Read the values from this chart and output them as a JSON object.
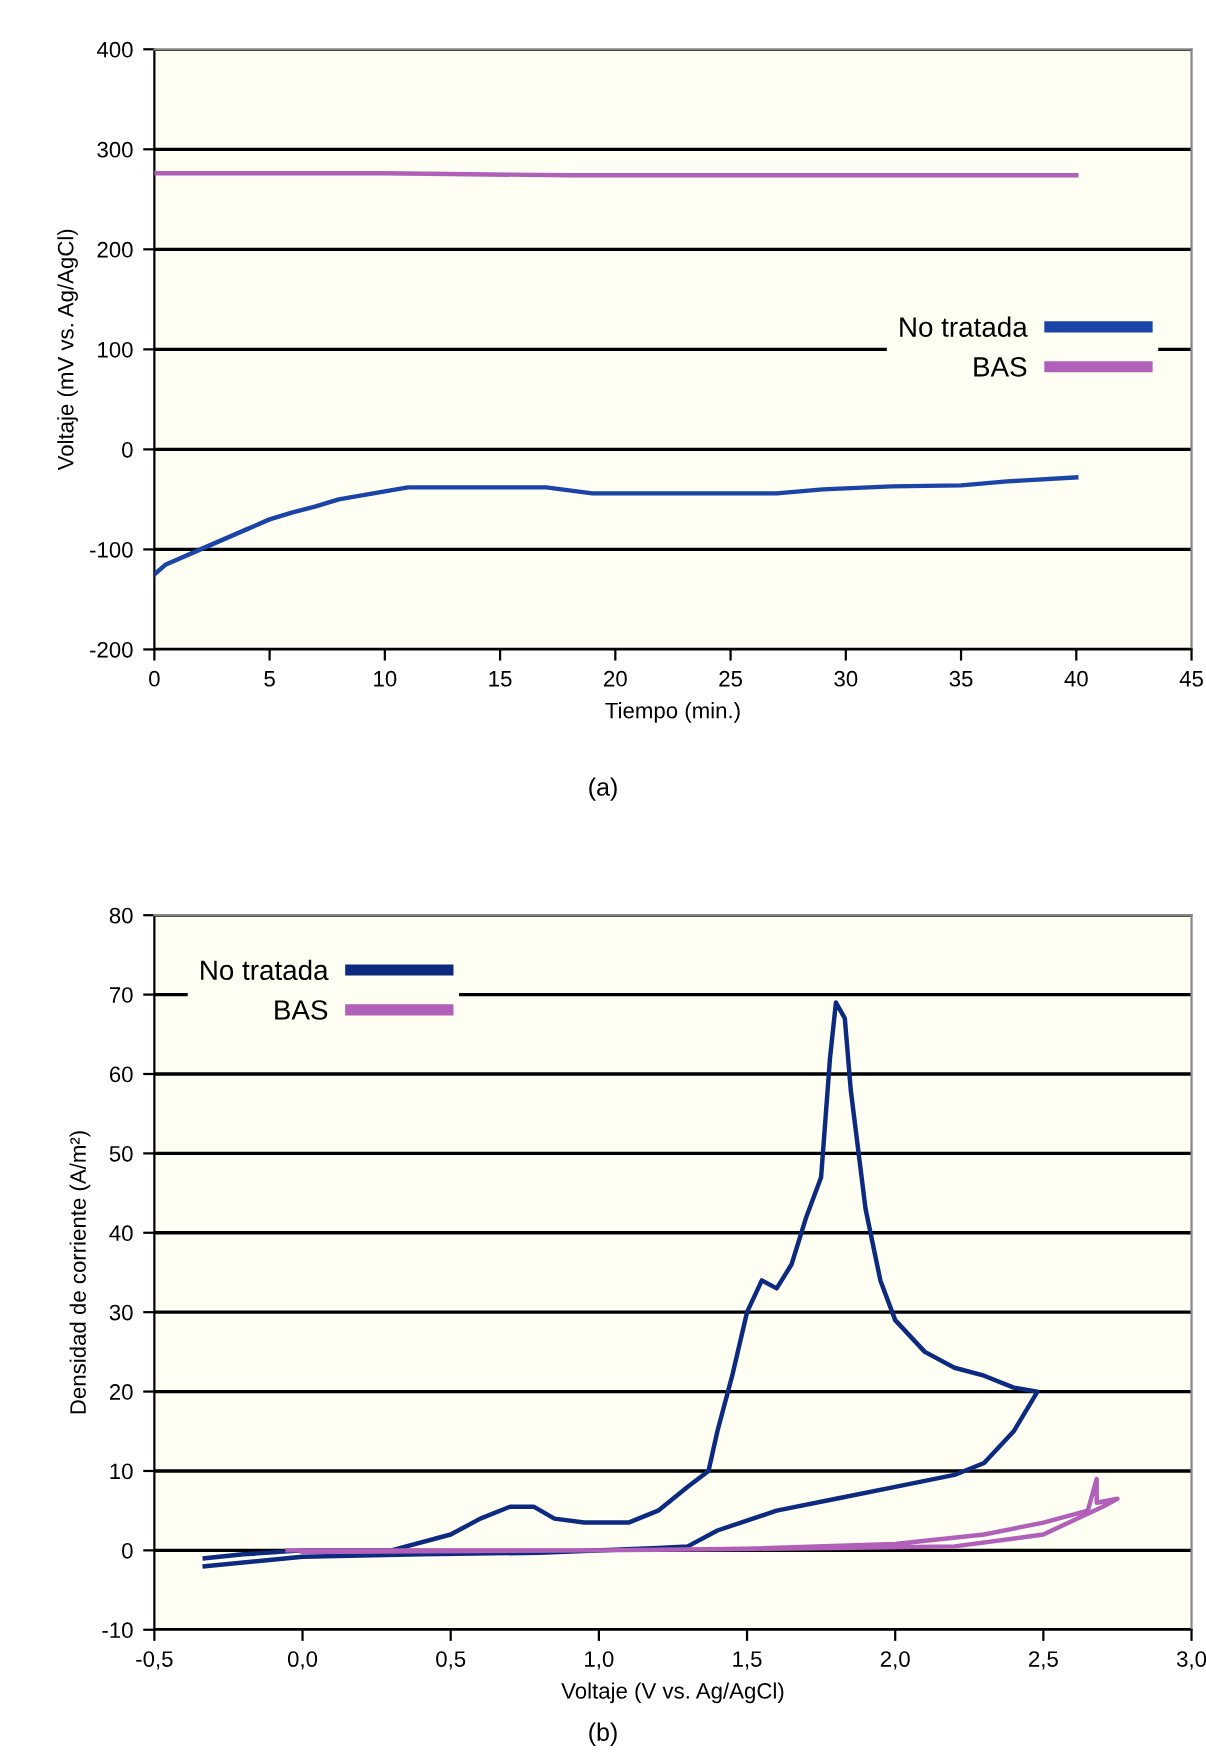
{
  "chart_data": [
    {
      "type": "line",
      "xlabel": "Tiempo (min.)",
      "ylabel": "Voltaje (mV vs. Ag/AgCl)",
      "annotations": [
        "(a)"
      ],
      "xlim": [
        0,
        45
      ],
      "xticks": [
        0,
        5,
        10,
        15,
        20,
        25,
        30,
        35,
        40,
        45
      ],
      "ylim": [
        -200,
        400
      ],
      "yticks": [
        -200,
        -100,
        0,
        100,
        200,
        300,
        400
      ],
      "grid": "y",
      "legend": "right",
      "marker": "none",
      "line_style": "solid",
      "series": [
        {
          "name": "No tratada",
          "color": "#1a44a8",
          "x": [
            0,
            0.5,
            1,
            2,
            3,
            4,
            5,
            6,
            7,
            8,
            9,
            10,
            11,
            17,
            19,
            27,
            29,
            32,
            35,
            37,
            40
          ],
          "values": [
            -125,
            -115,
            -110,
            -100,
            -90,
            -80,
            -70,
            -63,
            -57,
            -50,
            -46,
            -42,
            -38,
            -38,
            -44,
            -44,
            -40,
            -37,
            -36,
            -32,
            -28
          ]
        },
        {
          "name": "BAS",
          "color": "#b060b8",
          "x": [
            0,
            8,
            10,
            18,
            40
          ],
          "values": [
            276,
            276,
            276,
            274,
            274
          ]
        }
      ]
    },
    {
      "type": "line",
      "xlabel": "Voltaje (V vs. Ag/AgCl)",
      "ylabel": "Densidad de corriente (A/m²)",
      "annotations": [
        "(b)"
      ],
      "xlim": [
        -0.5,
        3.0
      ],
      "xticks": [
        {
          "value": -0.5,
          "label": "-0,5"
        },
        {
          "value": 0.0,
          "label": "0,0"
        },
        {
          "value": 0.5,
          "label": "0,5"
        },
        {
          "value": 1.0,
          "label": "1,0"
        },
        {
          "value": 1.5,
          "label": "1,5"
        },
        {
          "value": 2.0,
          "label": "2,0"
        },
        {
          "value": 2.5,
          "label": "2,5"
        },
        {
          "value": 3.0,
          "label": "3,0"
        }
      ],
      "ylim": [
        -10,
        80
      ],
      "yticks": [
        -10,
        0,
        10,
        20,
        30,
        40,
        50,
        60,
        70,
        80
      ],
      "grid": "y",
      "legend": "top left",
      "marker": "none",
      "line_style": "solid",
      "series": [
        {
          "name": "No tratada",
          "color": "#0c2a80",
          "x": [
            -0.33,
            -0.2,
            0.0,
            0.3,
            0.5,
            0.6,
            0.7,
            0.78,
            0.85,
            0.95,
            1.1,
            1.2,
            1.3,
            1.37,
            1.4,
            1.45,
            1.5,
            1.55,
            1.6,
            1.65,
            1.7,
            1.75,
            1.78,
            1.8,
            1.83,
            1.85,
            1.9,
            1.95,
            2.0,
            2.1,
            2.2,
            2.3,
            2.4,
            2.48,
            2.4,
            2.3,
            2.2,
            2.0,
            1.8,
            1.6,
            1.4,
            1.3,
            1.2,
            0.8,
            0.4,
            0.0,
            -0.33
          ],
          "values": [
            -1,
            -0.5,
            0,
            0,
            2,
            4,
            5.5,
            5.5,
            4,
            3.5,
            3.5,
            5,
            8,
            10,
            15,
            22,
            30,
            34,
            33,
            36,
            42,
            47,
            62,
            69,
            67,
            58,
            43,
            34,
            29,
            25,
            23,
            22,
            20.5,
            20,
            15,
            11,
            9.5,
            8,
            6.5,
            5,
            2.5,
            0.5,
            0.3,
            -0.3,
            -0.5,
            -0.8,
            -2
          ]
        },
        {
          "name": "BAS",
          "color": "#b060b8",
          "x": [
            -0.05,
            0.5,
            1.0,
            1.5,
            2.0,
            2.3,
            2.5,
            2.65,
            2.68,
            2.68,
            2.75,
            2.7,
            2.5,
            2.2,
            1.8,
            1.0,
            0.0
          ],
          "values": [
            0,
            0,
            0,
            0.2,
            0.8,
            2,
            3.5,
            5,
            9,
            6,
            6.5,
            5.5,
            2,
            0.5,
            0.3,
            0,
            -0.2
          ]
        }
      ]
    }
  ]
}
